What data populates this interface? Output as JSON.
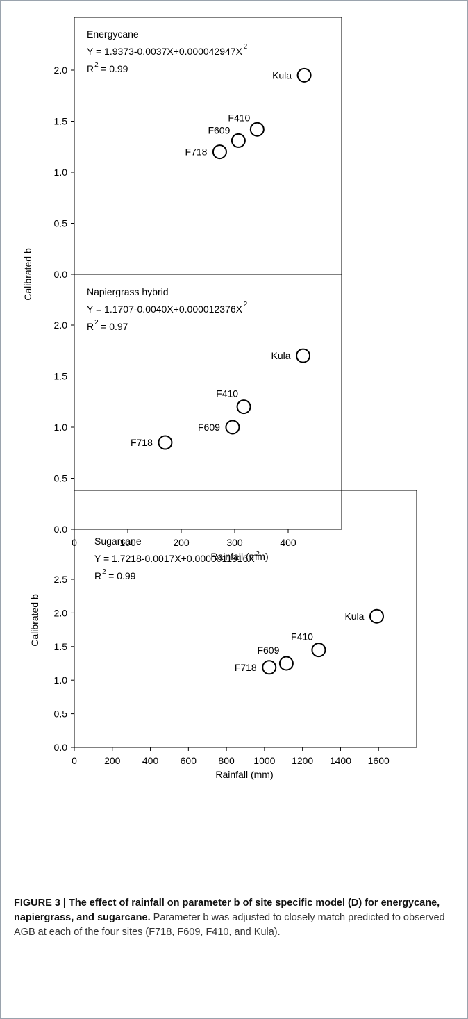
{
  "chart_data": [
    {
      "type": "scatter",
      "xlim": [
        0,
        500
      ],
      "ylim": [
        0,
        2.5
      ],
      "x_ticks": [
        0,
        100,
        200,
        300,
        400
      ],
      "y_ticks": [
        "0.0",
        "0.5",
        "1.0",
        "1.5",
        "2.0"
      ],
      "xlabel": "",
      "ylabel": "Calibrated b",
      "label": "Energycane",
      "equation": "Y = 1.9373-0.0037X+0.000042947X",
      "r2": "= 0.99",
      "points": [
        {
          "label": "Kula",
          "x": 430,
          "y": 1.95
        },
        {
          "label": "F410",
          "x": 342,
          "y": 1.42
        },
        {
          "label": "F609",
          "x": 307,
          "y": 1.31
        },
        {
          "label": "F718",
          "x": 272,
          "y": 1.2
        }
      ]
    },
    {
      "type": "scatter",
      "xlim": [
        0,
        500
      ],
      "ylim": [
        0,
        2.5
      ],
      "x_ticks": [
        "0",
        "100",
        "200",
        "300",
        "400"
      ],
      "y_ticks": [
        "0.0",
        "0.5",
        "1.0",
        "1.5",
        "2.0"
      ],
      "xlabel": "Rainfall (mm)",
      "ylabel": "",
      "label": "Napiergrass hybrid",
      "equation": "Y = 1.1707-0.0040X+0.000012376X",
      "r2": "= 0.97",
      "points": [
        {
          "label": "Kula",
          "x": 428,
          "y": 1.7
        },
        {
          "label": "F410",
          "x": 317,
          "y": 1.2
        },
        {
          "label": "F609",
          "x": 296,
          "y": 1.0
        },
        {
          "label": "F718",
          "x": 170,
          "y": 0.85
        }
      ]
    },
    {
      "type": "scatter",
      "xlim": [
        0,
        1800
      ],
      "ylim": [
        0,
        3.0
      ],
      "x_ticks": [
        "0",
        "200",
        "400",
        "600",
        "800",
        "1000",
        "1200",
        "1400",
        "1600"
      ],
      "y_ticks": [
        "0.0",
        "0.5",
        "1.0",
        "1.5",
        "2.0",
        "2.5"
      ],
      "xlabel": "Rainfall (mm)",
      "ylabel": "Calibrated b",
      "label": "Sugarcane",
      "equation": "Y = 1.7218-0.0017X+0.0000011916X",
      "r2": "= 0.99",
      "points": [
        {
          "label": "Kula",
          "x": 1590,
          "y": 1.95
        },
        {
          "label": "F410",
          "x": 1285,
          "y": 1.45
        },
        {
          "label": "F609",
          "x": 1115,
          "y": 1.25
        },
        {
          "label": "F718",
          "x": 1025,
          "y": 1.19
        }
      ]
    }
  ],
  "caption": {
    "title": "FIGURE 3 | The effect of rainfall on parameter b of site specific model (D) for energycane, napiergrass, and sugarcane.",
    "text": " Parameter b was adjusted to closely match predicted to observed AGB at each of the four sites (F718, F609, F410, and Kula)."
  }
}
